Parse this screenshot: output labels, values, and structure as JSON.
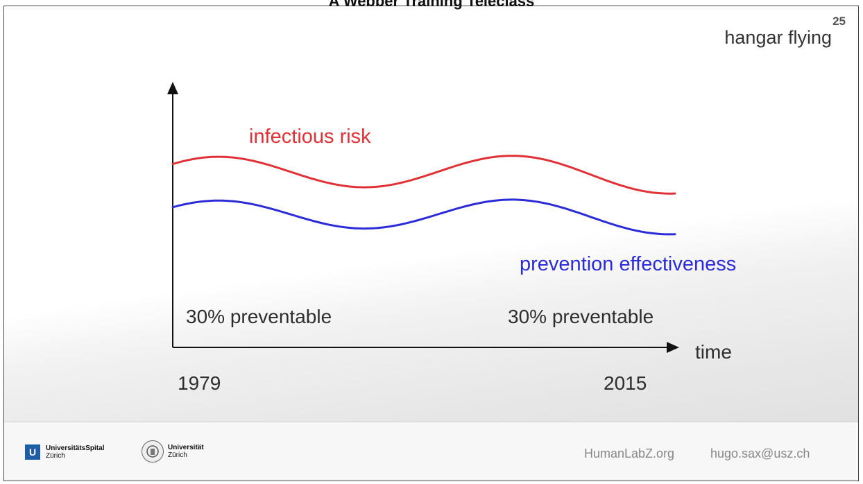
{
  "header": {
    "title": "A Webber Training Teleclass"
  },
  "slide": {
    "number": "25",
    "title": "hangar flying",
    "labels": {
      "infectious_risk": "infectious risk",
      "prevention_effectiveness": "prevention effectiveness",
      "preventable_start": "30% preventable",
      "preventable_end": "30% preventable",
      "x_axis": "time",
      "year_start": "1979",
      "year_end": "2015"
    }
  },
  "chart_data": {
    "type": "line",
    "title": "",
    "xlabel": "time",
    "ylabel": "",
    "series": [
      {
        "name": "infectious risk",
        "color": "#e03236",
        "shape": "wave",
        "level": "upper"
      },
      {
        "name": "prevention effectiveness",
        "color": "#2b2bd8",
        "shape": "wave",
        "level": "lower"
      }
    ],
    "annotations": [
      "30% preventable",
      "30% preventable"
    ],
    "x_tick_labels": [
      "1979",
      "2015"
    ],
    "grid": false,
    "legend": "inline labels"
  },
  "footer": {
    "logo_usz": {
      "icon": "usz-logo-icon",
      "line1": "UniversitätsSpital",
      "line2": "Zürich"
    },
    "logo_uzh": {
      "icon": "uzh-seal-icon",
      "line1": "Universität",
      "line2": "Zürich"
    },
    "website": "HumanLabZ.org",
    "email": "hugo.sax@usz.ch"
  }
}
